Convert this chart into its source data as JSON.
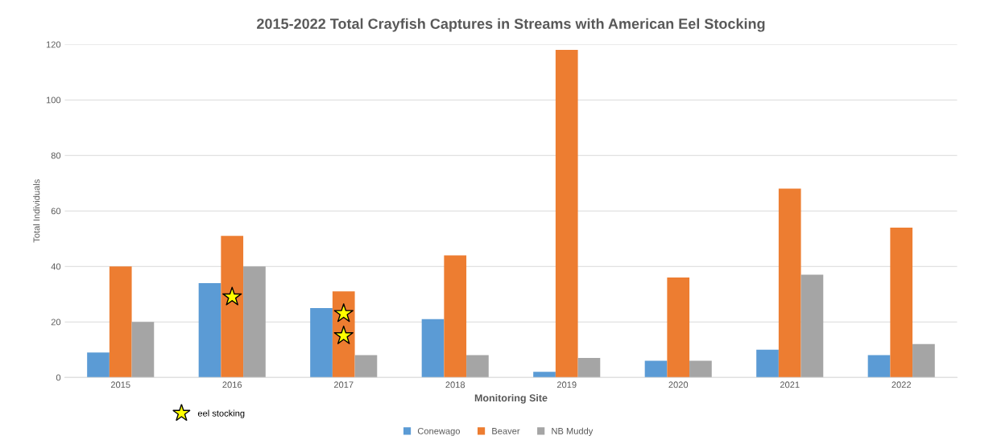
{
  "chart_data": {
    "type": "bar",
    "title": "2015-2022 Total Crayfish Captures in Streams with American Eel Stocking",
    "xlabel": "Monitoring Site",
    "ylabel": "Total Individuals",
    "categories": [
      "2015",
      "2016",
      "2017",
      "2018",
      "2019",
      "2020",
      "2021",
      "2022"
    ],
    "series": [
      {
        "name": "Conewago",
        "color": "#5b9bd5",
        "values": [
          9,
          34,
          25,
          21,
          2,
          6,
          10,
          8
        ]
      },
      {
        "name": "Beaver",
        "color": "#ed7d31",
        "values": [
          40,
          51,
          31,
          44,
          118,
          36,
          68,
          54
        ]
      },
      {
        "name": "NB Muddy",
        "color": "#a5a5a5",
        "values": [
          20,
          40,
          8,
          8,
          7,
          6,
          37,
          12
        ]
      },
      {
        "name": "eel stocking",
        "type": "scatter",
        "color": "#ffff00",
        "marker": "star",
        "values": [
          null,
          29,
          23,
          null,
          null,
          null,
          null,
          null
        ]
      },
      {
        "type": "scatter",
        "color": "#ffff00",
        "marker": "star",
        "values": [
          null,
          null,
          15,
          null,
          null,
          null,
          null,
          null
        ]
      }
    ],
    "ylim": [
      0,
      120
    ],
    "yticks": [
      0,
      20,
      40,
      60,
      80,
      100,
      120
    ],
    "grid": "y",
    "legend": "bottom"
  }
}
